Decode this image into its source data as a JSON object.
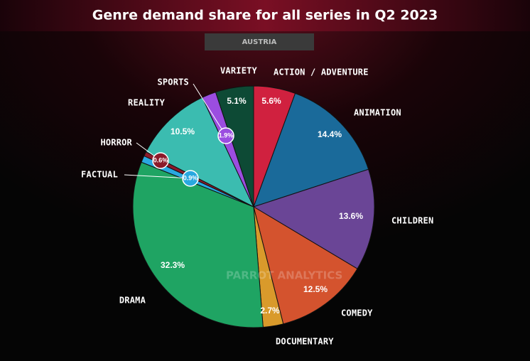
{
  "chart_data": {
    "type": "pie",
    "title": "Genre demand share for all series in Q2 2023",
    "subtitle": "AUSTRIA",
    "watermark": "PARROT ANALYTICS",
    "categories": [
      "ACTION / ADVENTURE",
      "ANIMATION",
      "CHILDREN",
      "COMEDY",
      "DOCUMENTARY",
      "DRAMA",
      "FACTUAL",
      "HORROR",
      "REALITY",
      "SPORTS",
      "VARIETY"
    ],
    "values": [
      5.6,
      14.4,
      13.6,
      12.5,
      2.7,
      32.3,
      0.9,
      0.6,
      10.5,
      1.9,
      5.1
    ],
    "value_labels": [
      "5.6%",
      "14.4%",
      "13.6%",
      "12.5%",
      "2.7%",
      "32.3%",
      "0.9%",
      "0.6%",
      "10.5%",
      "1.9%",
      "5.1%"
    ],
    "colors": [
      "#d0213f",
      "#1a6a9a",
      "#6a4596",
      "#d4532e",
      "#d99a2b",
      "#1fa463",
      "#29a8e0",
      "#8b1a2a",
      "#3bbcb0",
      "#9b4de0",
      "#0d4a35"
    ]
  }
}
